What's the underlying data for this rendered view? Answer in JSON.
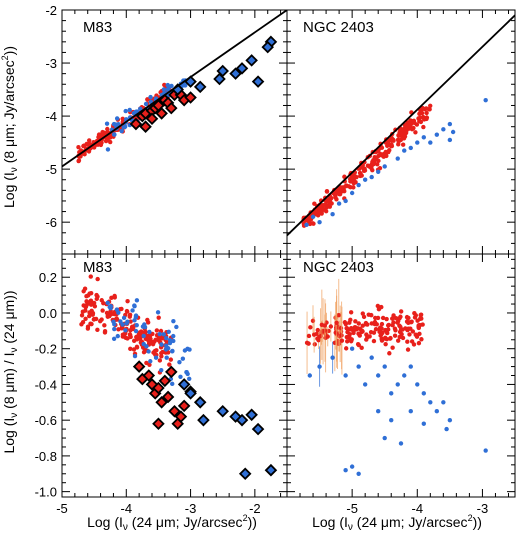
{
  "colors": {
    "red": "#e8201b",
    "blue": "#2f6fd6",
    "orange": "#f0a060",
    "black": "#000000"
  },
  "xlabel": "Log (Iν (24 μm; Jy/arcsec²))",
  "xlabel_parts": {
    "pre": "Log (I",
    "sub": "ν",
    "mid": " (24 μm; Jy/arcsec",
    "sup": "2",
    "post": "))"
  },
  "ylabel_top": "Log (Iν (8 μm; Jy/arcsec²))",
  "ylabel_top_parts": {
    "pre": "Log (I",
    "sub": "ν",
    "mid": " (8 μm; Jy/arcsec",
    "sup": "2",
    "post": "))"
  },
  "ylabel_bottom": "Log (Iν (8 μm) / Iν (24 μm))",
  "ylabel_bottom_parts": {
    "pre": "Log (I",
    "sub": "ν",
    "mid": " (8 μm) / I",
    "sub2": "ν",
    "post": " (24 μm))"
  },
  "chart_data": [
    {
      "type": "scatter",
      "title": "M83",
      "xlim": [
        -5,
        -1.5
      ],
      "ylim": [
        -6.6,
        -2
      ],
      "xticks": [
        -5,
        -4,
        -3,
        -2
      ],
      "yticks": [
        -6,
        -5,
        -4,
        -3,
        -2
      ],
      "fit_line": [
        [
          -5,
          -4.95
        ],
        [
          -1.5,
          -2.0
        ]
      ],
      "series": [
        {
          "marker": "dot",
          "color": "red",
          "band": {
            "x": [
              -4.75,
              -3.3
            ],
            "slope": 0.84,
            "intercept": -0.75,
            "scatter": 0.07
          }
        },
        {
          "marker": "dot",
          "color": "blue",
          "band": {
            "x": [
              -4.3,
              -3.0
            ],
            "slope": 0.84,
            "intercept": -0.75,
            "scatter": 0.08
          }
        },
        {
          "marker": "diamond",
          "color": "red",
          "points": [
            [
              -3.85,
              -4.15
            ],
            [
              -3.75,
              -4.0
            ],
            [
              -3.7,
              -3.95
            ],
            [
              -3.6,
              -3.9
            ],
            [
              -3.55,
              -3.85
            ],
            [
              -3.5,
              -3.8
            ],
            [
              -3.45,
              -3.95
            ],
            [
              -3.4,
              -3.7
            ],
            [
              -3.35,
              -3.75
            ],
            [
              -3.3,
              -3.85
            ],
            [
              -3.25,
              -3.6
            ],
            [
              -3.15,
              -3.6
            ],
            [
              -3.1,
              -3.7
            ],
            [
              -3.0,
              -3.65
            ],
            [
              -3.6,
              -4.05
            ],
            [
              -3.7,
              -4.2
            ]
          ]
        },
        {
          "marker": "diamond",
          "color": "blue",
          "points": [
            [
              -3.0,
              -3.35
            ],
            [
              -2.85,
              -3.45
            ],
            [
              -2.55,
              -3.3
            ],
            [
              -2.3,
              -3.2
            ],
            [
              -2.2,
              -3.1
            ],
            [
              -2.05,
              -2.95
            ],
            [
              -1.95,
              -3.35
            ],
            [
              -1.75,
              -2.6
            ],
            [
              -1.8,
              -2.7
            ],
            [
              -3.2,
              -3.5
            ],
            [
              -2.5,
              -3.15
            ]
          ]
        }
      ]
    },
    {
      "type": "scatter",
      "title": "NGC 2403",
      "xlim": [
        -6,
        -2.5
      ],
      "ylim": [
        -6.6,
        -2
      ],
      "xticks": [
        -6,
        -5,
        -4,
        -3
      ],
      "yticks": [
        -6,
        -5,
        -4,
        -3,
        -2
      ],
      "fit_line": [
        [
          -6,
          -6.25
        ],
        [
          -2.5,
          -2.1
        ]
      ],
      "series": [
        {
          "marker": "dot",
          "color": "red",
          "band": {
            "x": [
              -5.75,
              -3.8
            ],
            "slope": 1.12,
            "intercept": 0.4,
            "scatter": 0.09
          }
        },
        {
          "marker": "dot",
          "color": "blue",
          "points": [
            [
              -5.7,
              -6.05
            ],
            [
              -5.6,
              -5.9
            ],
            [
              -5.5,
              -6.0
            ],
            [
              -5.3,
              -5.85
            ],
            [
              -5.1,
              -5.6
            ],
            [
              -5.0,
              -5.45
            ],
            [
              -4.9,
              -5.3
            ],
            [
              -4.8,
              -5.2
            ],
            [
              -4.6,
              -5.05
            ],
            [
              -4.5,
              -4.95
            ],
            [
              -4.3,
              -4.8
            ],
            [
              -4.1,
              -4.6
            ],
            [
              -3.9,
              -4.4
            ],
            [
              -3.8,
              -4.5
            ],
            [
              -3.7,
              -4.35
            ],
            [
              -3.6,
              -4.25
            ],
            [
              -3.5,
              -4.15
            ],
            [
              -3.45,
              -4.3
            ],
            [
              -3.5,
              -4.45
            ],
            [
              -2.95,
              -3.7
            ],
            [
              -4.2,
              -4.65
            ],
            [
              -4.0,
              -4.5
            ],
            [
              -5.2,
              -5.65
            ],
            [
              -4.7,
              -5.15
            ]
          ]
        }
      ]
    },
    {
      "type": "scatter",
      "title": "M83",
      "xlim": [
        -5,
        -1.5
      ],
      "ylim": [
        -1.03,
        0.33
      ],
      "xticks": [
        -5,
        -4,
        -3,
        -2
      ],
      "yticks": [
        -1.0,
        -0.8,
        -0.6,
        -0.4,
        -0.2,
        0.0,
        0.2
      ],
      "series": [
        {
          "marker": "dot",
          "color": "red",
          "band": {
            "x": [
              -4.7,
              -3.3
            ],
            "slope": -0.18,
            "intercept": -0.8,
            "scatter": 0.06
          }
        },
        {
          "marker": "dot",
          "color": "blue",
          "band": {
            "x": [
              -4.3,
              -3.0
            ],
            "slope": -0.25,
            "intercept": -1.05,
            "scatter": 0.08
          }
        },
        {
          "marker": "diamond",
          "color": "red",
          "points": [
            [
              -3.8,
              -0.3
            ],
            [
              -3.75,
              -0.37
            ],
            [
              -3.65,
              -0.35
            ],
            [
              -3.6,
              -0.4
            ],
            [
              -3.55,
              -0.45
            ],
            [
              -3.5,
              -0.42
            ],
            [
              -3.45,
              -0.5
            ],
            [
              -3.4,
              -0.38
            ],
            [
              -3.35,
              -0.47
            ],
            [
              -3.3,
              -0.33
            ],
            [
              -3.25,
              -0.55
            ],
            [
              -3.2,
              -0.62
            ],
            [
              -3.15,
              -0.58
            ],
            [
              -3.1,
              -0.52
            ],
            [
              -3.0,
              -0.44
            ],
            [
              -3.5,
              -0.62
            ]
          ]
        },
        {
          "marker": "diamond",
          "color": "blue",
          "points": [
            [
              -3.0,
              -0.45
            ],
            [
              -2.85,
              -0.5
            ],
            [
              -2.8,
              -0.6
            ],
            [
              -2.5,
              -0.55
            ],
            [
              -2.3,
              -0.58
            ],
            [
              -2.2,
              -0.6
            ],
            [
              -2.05,
              -0.57
            ],
            [
              -1.95,
              -0.65
            ],
            [
              -2.15,
              -0.9
            ],
            [
              -1.75,
              -0.88
            ],
            [
              -3.1,
              -0.4
            ]
          ]
        }
      ]
    },
    {
      "type": "scatter",
      "title": "NGC 2403",
      "xlim": [
        -6,
        -2.5
      ],
      "ylim": [
        -1.03,
        0.33
      ],
      "xticks": [
        -6,
        -5,
        -4,
        -3
      ],
      "yticks": [
        -1.0,
        -0.8,
        -0.6,
        -0.4,
        -0.2,
        0.0,
        0.2
      ],
      "series": [
        {
          "marker": "dot",
          "color": "red",
          "band": {
            "x": [
              -5.7,
              -3.9
            ],
            "slope": 0.03,
            "intercept": 0.05,
            "scatter": 0.05
          }
        },
        {
          "marker": "dot",
          "color": "blue",
          "points": [
            [
              -5.65,
              -0.35
            ],
            [
              -5.5,
              -0.3
            ],
            [
              -5.3,
              -0.25
            ],
            [
              -5.1,
              -0.35
            ],
            [
              -5.0,
              -0.2
            ],
            [
              -4.9,
              -0.3
            ],
            [
              -4.8,
              -0.4
            ],
            [
              -4.7,
              -0.25
            ],
            [
              -4.6,
              -0.35
            ],
            [
              -4.5,
              -0.3
            ],
            [
              -4.4,
              -0.45
            ],
            [
              -4.3,
              -0.4
            ],
            [
              -4.2,
              -0.35
            ],
            [
              -4.1,
              -0.3
            ],
            [
              -4.0,
              -0.4
            ],
            [
              -3.9,
              -0.45
            ],
            [
              -3.8,
              -0.5
            ],
            [
              -3.7,
              -0.55
            ],
            [
              -3.6,
              -0.5
            ],
            [
              -3.5,
              -0.6
            ],
            [
              -4.6,
              -0.55
            ],
            [
              -4.4,
              -0.6
            ],
            [
              -4.1,
              -0.55
            ],
            [
              -4.5,
              -0.7
            ],
            [
              -4.25,
              -0.73
            ],
            [
              -3.9,
              -0.62
            ],
            [
              -5.1,
              -0.88
            ],
            [
              -5.0,
              -0.86
            ],
            [
              -4.9,
              -0.9
            ],
            [
              -2.95,
              -0.77
            ],
            [
              -3.55,
              -0.65
            ]
          ]
        }
      ]
    }
  ]
}
